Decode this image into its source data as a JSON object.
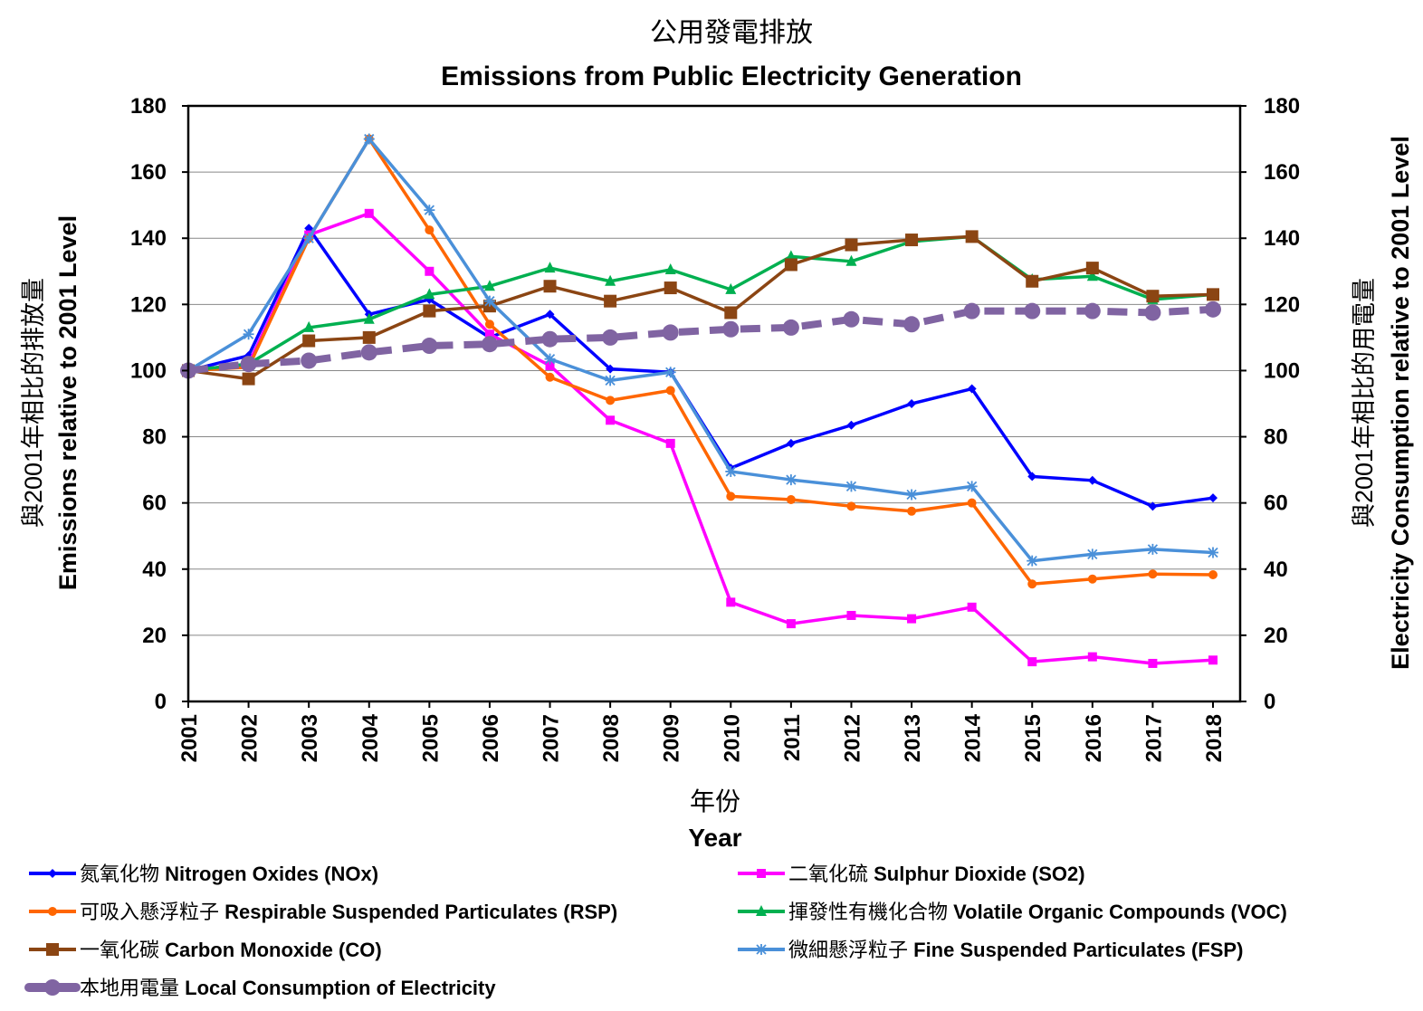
{
  "chart_data": {
    "type": "line",
    "title": "公用發電排放",
    "subtitle": "Emissions from Public Electricity Generation",
    "xlabel_zh": "年份",
    "xlabel": "Year",
    "ylabel_zh": "與2001年相比的排放量",
    "ylabel": "Emissions relative to 2001 Level",
    "y2label_zh": "與2001年相比的用電量",
    "y2label": "Electricity Consumption relative to 2001 Level",
    "ylim": [
      0,
      180
    ],
    "y2lim": [
      0,
      180
    ],
    "yticks": [
      0,
      20,
      40,
      60,
      80,
      100,
      120,
      140,
      160,
      180
    ],
    "grid": true,
    "legend_position": "bottom",
    "x": [
      "2001",
      "2002",
      "2003",
      "2004",
      "2005",
      "2006",
      "2007",
      "2008",
      "2009",
      "2010",
      "2011",
      "2012",
      "2013",
      "2014",
      "2015",
      "2016",
      "2017",
      "2018"
    ],
    "series": [
      {
        "name_zh": "氮氧化物",
        "name": "Nitrogen Oxides (NOx)",
        "color": "#0000FF",
        "marker": "diamond",
        "dashed": false,
        "values": [
          100,
          104.5,
          143,
          117,
          121.5,
          110,
          117,
          100.5,
          99.5,
          70.5,
          78,
          83.5,
          90,
          94.5,
          68,
          66.8,
          59,
          61.5
        ]
      },
      {
        "name_zh": "二氧化硫",
        "name": "Sulphur Dioxide (SO2)",
        "color": "#FF00FF",
        "marker": "square",
        "dashed": false,
        "values": [
          100,
          102,
          141,
          147.5,
          130,
          111,
          101.5,
          85,
          78,
          30,
          23.5,
          26,
          25,
          28.5,
          12,
          13.5,
          11.5,
          12.5
        ]
      },
      {
        "name_zh": "可吸入懸浮粒子",
        "name": "Respirable Suspended Particulates (RSP)",
        "color": "#FF6600",
        "marker": "circle",
        "dashed": false,
        "values": [
          100,
          101,
          140,
          170,
          142.5,
          114,
          98,
          91,
          94,
          62,
          61,
          59,
          57.5,
          60,
          35.5,
          37,
          38.5,
          38.3
        ]
      },
      {
        "name_zh": "揮發性有機化合物",
        "name": "Volatile Organic Compounds (VOC)",
        "color": "#00B050",
        "marker": "triangle",
        "dashed": false,
        "values": [
          100,
          102,
          113,
          115.5,
          123,
          125.5,
          131,
          127,
          130.5,
          124.5,
          134.5,
          133,
          139,
          140.5,
          127.5,
          128.5,
          121.5,
          123
        ]
      },
      {
        "name_zh": "一氧化碳",
        "name": "Carbon Monoxide (CO)",
        "color": "#8B4513",
        "marker": "bigsquare",
        "dashed": false,
        "values": [
          100,
          97.5,
          109,
          110,
          118,
          119.5,
          125.5,
          121,
          125,
          117.5,
          132,
          138,
          139.5,
          140.5,
          127,
          131,
          122.5,
          123
        ]
      },
      {
        "name_zh": "微細懸浮粒子",
        "name": "Fine Suspended Particulates (FSP)",
        "color": "#4A90D9",
        "marker": "asterisk",
        "dashed": false,
        "values": [
          100,
          111,
          140,
          170,
          148.5,
          121,
          103.5,
          97,
          99.5,
          69.5,
          67,
          65,
          62.5,
          65,
          42.5,
          44.5,
          46,
          45
        ]
      },
      {
        "name_zh": "本地用電量",
        "name": "Local Consumption of Electricity",
        "color": "#8064A2",
        "marker": "bigcircle",
        "dashed": true,
        "axis": "right",
        "values": [
          100,
          102,
          103,
          105.5,
          107.5,
          108,
          109.5,
          110,
          111.5,
          112.5,
          113,
          115.5,
          114,
          118,
          118,
          118,
          117.5,
          118.5
        ]
      }
    ]
  }
}
